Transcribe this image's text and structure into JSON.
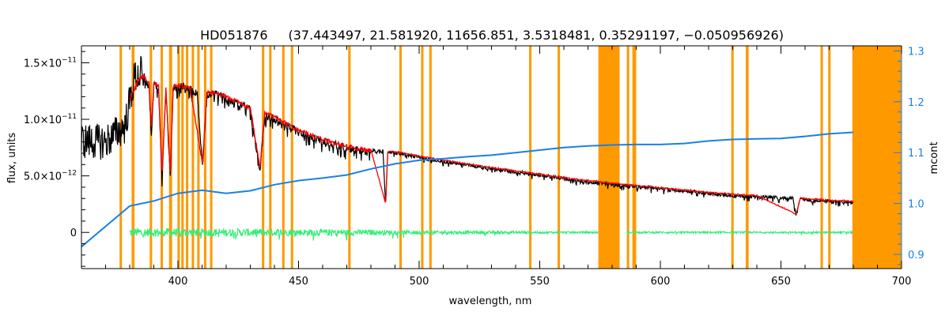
{
  "chart_data": {
    "type": "line",
    "title": "HD051876",
    "title_params": "(37.443497, 21.581920, 11656.851, 3.5318481, 0.35291197, −0.050956926)",
    "xlabel": "wavelength, nm",
    "ylabel": "flux, units",
    "y2label": "mcont",
    "xlim": [
      360,
      700
    ],
    "ylim": [
      -3.2e-12,
      1.65e-11
    ],
    "y2lim": [
      0.872,
      1.31
    ],
    "xticks": [
      {
        "value": 400,
        "label": "400"
      },
      {
        "value": 450,
        "label": "450"
      },
      {
        "value": 500,
        "label": "500"
      },
      {
        "value": 550,
        "label": "550"
      },
      {
        "value": 600,
        "label": "600"
      },
      {
        "value": 650,
        "label": "650"
      },
      {
        "value": 700,
        "label": "700"
      }
    ],
    "yticks": [
      {
        "value": 0,
        "mant": "0",
        "exp": ""
      },
      {
        "value": 5e-12,
        "mant": "5.0×10",
        "exp": "−12"
      },
      {
        "value": 1e-11,
        "mant": "1.0×10",
        "exp": "−11"
      },
      {
        "value": 1.5e-11,
        "mant": "1.5×10",
        "exp": "−11"
      }
    ],
    "y2ticks": [
      {
        "value": 0.9,
        "label": "0.9"
      },
      {
        "value": 1.0,
        "label": "1.0"
      },
      {
        "value": 1.1,
        "label": "1.1"
      },
      {
        "value": 1.2,
        "label": "1.2"
      },
      {
        "value": 1.3,
        "label": "1.3"
      }
    ],
    "colors": {
      "masks": "#ff9900",
      "observed": "#000000",
      "model": "#ff0000",
      "continuum": "#1a80e6",
      "residuals": "#33ee77",
      "axis": "#000000",
      "axis_right": "#1a80e6"
    },
    "masked_regions": [
      [
        375.8,
        376.8
      ],
      [
        380.8,
        382.0
      ],
      [
        388.3,
        389.3
      ],
      [
        392.8,
        393.8
      ],
      [
        396.3,
        397.6
      ],
      [
        399.8,
        400.8
      ],
      [
        401.4,
        402.4
      ],
      [
        403.3,
        404.3
      ],
      [
        405.7,
        406.7
      ],
      [
        408.0,
        409.0
      ],
      [
        410.8,
        411.8
      ],
      [
        413.3,
        414.3
      ],
      [
        434.8,
        435.8
      ],
      [
        437.8,
        438.8
      ],
      [
        443.2,
        444.2
      ],
      [
        446.8,
        447.8
      ],
      [
        470.6,
        471.6
      ],
      [
        491.8,
        492.8
      ],
      [
        500.8,
        501.8
      ],
      [
        504.2,
        505.2
      ],
      [
        545.6,
        546.6
      ],
      [
        557.4,
        558.4
      ],
      [
        574.3,
        583.1
      ],
      [
        586.1,
        587.1
      ],
      [
        588.4,
        590.0
      ],
      [
        629.4,
        630.4
      ],
      [
        635.4,
        636.6
      ],
      [
        666.4,
        667.4
      ],
      [
        669.6,
        670.6
      ],
      [
        679.6,
        700.0
      ]
    ],
    "series": [
      {
        "key": "observed",
        "x": [
          360,
          370,
          378,
          382,
          386,
          388,
          389,
          390,
          392,
          393.4,
          395,
          396.8,
          398,
          400,
          402,
          405,
          408,
          410.2,
          412,
          415,
          418,
          420,
          425,
          430,
          434.0,
          436,
          440,
          445,
          450,
          460,
          470,
          480,
          485,
          486.1,
          487,
          490,
          500,
          510,
          520,
          530,
          540,
          550,
          560,
          570,
          580,
          590,
          600,
          610,
          620,
          630,
          640,
          650,
          655,
          656.3,
          658,
          660,
          670,
          680
        ],
        "y": [
          8.1e-12,
          8e-12,
          9.4e-12,
          1.37e-11,
          1.42e-11,
          1.34e-11,
          9e-12,
          1.33e-11,
          1.33e-11,
          4.8e-12,
          1.3e-11,
          5.2e-12,
          1.31e-11,
          1.32e-11,
          1.33e-11,
          1.3e-11,
          1.28e-11,
          6e-12,
          1.25e-11,
          1.26e-11,
          1.24e-11,
          1.22e-11,
          1.17e-11,
          1.12e-11,
          5.6e-12,
          1.07e-11,
          1.04e-11,
          9.8e-12,
          9.2e-12,
          8.4e-12,
          7.8e-12,
          7.4e-12,
          7.3e-12,
          2.4e-12,
          7.2e-12,
          7.2e-12,
          6.8e-12,
          6.4e-12,
          6.1e-12,
          5.8e-12,
          5.5e-12,
          5.2e-12,
          4.9e-12,
          4.6e-12,
          4.4e-12,
          4.2e-12,
          4e-12,
          3.8e-12,
          3.6e-12,
          3.4e-12,
          3.3e-12,
          3.2e-12,
          3.15e-12,
          1.6e-12,
          3.1e-12,
          3.05e-12,
          2.9e-12,
          2.8e-12
        ]
      },
      {
        "key": "model",
        "x": [
          380,
          384,
          386,
          388,
          389,
          390,
          392,
          393.4,
          395,
          396.8,
          398,
          400,
          405,
          410.2,
          412,
          415,
          420,
          425,
          430,
          434.0,
          436,
          440,
          450,
          460,
          470,
          480,
          486.1,
          487,
          490,
          500,
          520,
          540,
          560,
          580,
          600,
          620,
          640,
          656.3,
          658,
          670,
          680
        ],
        "y": [
          1.2e-11,
          1.38e-11,
          1.4e-11,
          1.34e-11,
          9.5e-12,
          1.33e-11,
          1.33e-11,
          5.2e-12,
          1.3e-11,
          5.5e-12,
          1.31e-11,
          1.32e-11,
          1.3e-11,
          6.3e-12,
          1.25e-11,
          1.26e-11,
          1.22e-11,
          1.17e-11,
          1.12e-11,
          5.9e-12,
          1.07e-11,
          1.04e-11,
          9.2e-12,
          8.4e-12,
          7.8e-12,
          7.4e-12,
          2.6e-12,
          7.2e-12,
          7.2e-12,
          6.8e-12,
          6.1e-12,
          5.5e-12,
          4.9e-12,
          4.4e-12,
          4e-12,
          3.6e-12,
          3.3e-12,
          1.7e-12,
          3.1e-12,
          2.9e-12,
          2.8e-12
        ]
      },
      {
        "key": "continuum",
        "axis": "right",
        "x": [
          360,
          380,
          390,
          400,
          410,
          420,
          430,
          440,
          450,
          460,
          470,
          480,
          490,
          500,
          510,
          520,
          530,
          540,
          550,
          560,
          570,
          580,
          590,
          600,
          610,
          620,
          630,
          640,
          650,
          660,
          670,
          680
        ],
        "y": [
          0.915,
          0.995,
          1.005,
          1.02,
          1.026,
          1.02,
          1.025,
          1.037,
          1.045,
          1.05,
          1.056,
          1.068,
          1.078,
          1.085,
          1.088,
          1.092,
          1.095,
          1.1,
          1.105,
          1.11,
          1.113,
          1.115,
          1.116,
          1.116,
          1.118,
          1.123,
          1.126,
          1.127,
          1.128,
          1.132,
          1.137,
          1.14
        ]
      },
      {
        "key": "residuals",
        "x_start": 380,
        "x_end": 680,
        "gap": [
          574.3,
          586.0
        ],
        "amplitude": [
          {
            "x": 380,
            "value": 4e-13
          },
          {
            "x": 460,
            "value": 3e-13
          },
          {
            "x": 500,
            "value": 1.8e-13
          },
          {
            "x": 560,
            "value": 9e-14
          },
          {
            "x": 680,
            "value": 8e-14
          }
        ]
      }
    ]
  }
}
